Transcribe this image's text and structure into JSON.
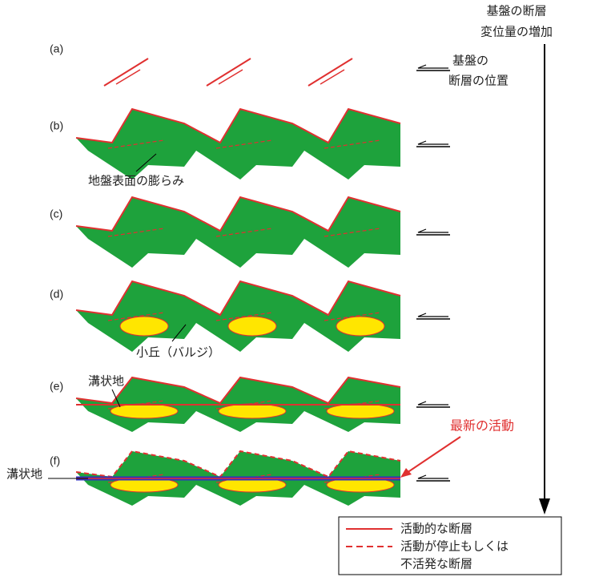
{
  "header": {
    "lines": [
      "基盤の断層",
      "変位量の増加"
    ]
  },
  "panels": [
    {
      "label": "(a)"
    },
    {
      "label": "(b)"
    },
    {
      "label": "(c)"
    },
    {
      "label": "(d)"
    },
    {
      "label": "(e)"
    },
    {
      "label": "(f)"
    }
  ],
  "annotations": {
    "fault_position": [
      "基盤の",
      "断層の位置"
    ],
    "surface_bulge": "地盤表面の膨らみ",
    "mound": "小丘（バルジ）",
    "trench_e": "溝状地",
    "trench_f": "溝状地",
    "latest_activity": "最新の活動"
  },
  "legend": {
    "items": [
      "活動的な断層",
      "活動が停止もしくは",
      "不活発な断層"
    ]
  }
}
